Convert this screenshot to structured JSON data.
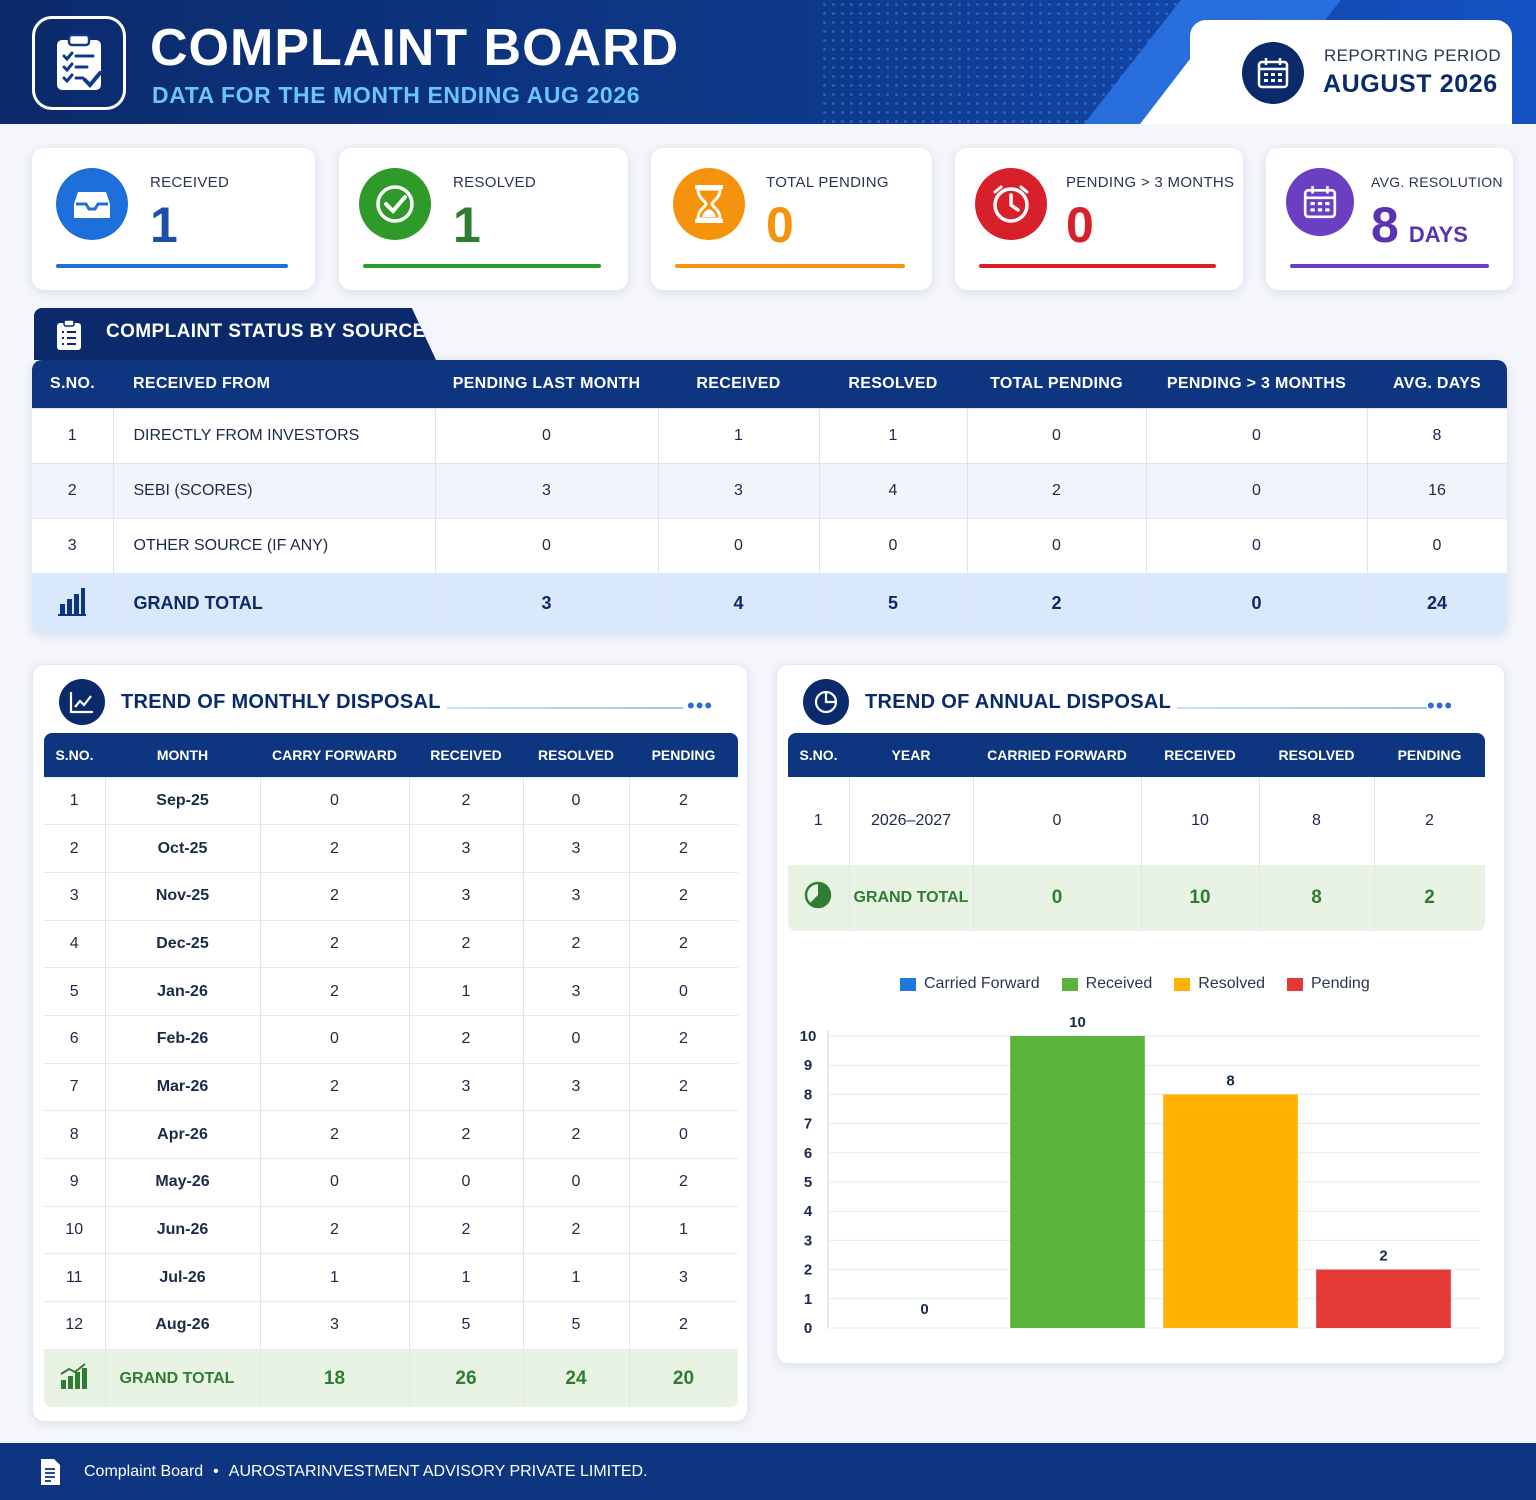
{
  "header": {
    "title": "COMPLAINT BOARD",
    "subtitle": "DATA FOR THE MONTH ENDING AUG 2026",
    "period_label": "REPORTING PERIOD",
    "period_value": "AUGUST 2026"
  },
  "kpis": [
    {
      "label": "RECEIVED",
      "value": "1",
      "color": "#1e6fd9",
      "icon": "inbox-icon"
    },
    {
      "label": "RESOLVED",
      "value": "1",
      "color": "#2e9a2a",
      "icon": "check-circle-icon"
    },
    {
      "label": "TOTAL PENDING",
      "value": "0",
      "color": "#f5930c",
      "icon": "hourglass-icon"
    },
    {
      "label": "PENDING > 3 MONTHS",
      "value": "0",
      "color": "#d8202a",
      "icon": "clock-icon"
    },
    {
      "label": "AVG. RESOLUTION",
      "value": "8",
      "unit": "DAYS",
      "color": "#6a3fc2",
      "icon": "calendar-icon"
    }
  ],
  "source_section": {
    "title": "COMPLAINT STATUS BY SOURCE",
    "headers": [
      "S.NO.",
      "RECEIVED FROM",
      "PENDING LAST MONTH",
      "RECEIVED",
      "RESOLVED",
      "TOTAL PENDING",
      "PENDING > 3 MONTHS",
      "AVG. DAYS"
    ],
    "rows": [
      [
        "1",
        "DIRECTLY FROM INVESTORS",
        "0",
        "1",
        "1",
        "0",
        "0",
        "8"
      ],
      [
        "2",
        "SEBI (SCORES)",
        "3",
        "3",
        "4",
        "2",
        "0",
        "16"
      ],
      [
        "3",
        "OTHER SOURCE (IF ANY)",
        "0",
        "0",
        "0",
        "0",
        "0",
        "0"
      ]
    ],
    "total": [
      "GRAND TOTAL",
      "3",
      "4",
      "5",
      "2",
      "0",
      "24"
    ]
  },
  "monthly": {
    "title": "TREND OF MONTHLY DISPOSAL",
    "headers": [
      "S.NO.",
      "MONTH",
      "CARRY FORWARD",
      "RECEIVED",
      "RESOLVED",
      "PENDING"
    ],
    "rows": [
      [
        "1",
        "Sep-25",
        "0",
        "2",
        "0",
        "2"
      ],
      [
        "2",
        "Oct-25",
        "2",
        "3",
        "3",
        "2"
      ],
      [
        "3",
        "Nov-25",
        "2",
        "3",
        "3",
        "2"
      ],
      [
        "4",
        "Dec-25",
        "2",
        "2",
        "2",
        "2"
      ],
      [
        "5",
        "Jan-26",
        "2",
        "1",
        "3",
        "0"
      ],
      [
        "6",
        "Feb-26",
        "0",
        "2",
        "0",
        "2"
      ],
      [
        "7",
        "Mar-26",
        "2",
        "3",
        "3",
        "2"
      ],
      [
        "8",
        "Apr-26",
        "2",
        "2",
        "2",
        "0"
      ],
      [
        "9",
        "May-26",
        "0",
        "0",
        "0",
        "2"
      ],
      [
        "10",
        "Jun-26",
        "2",
        "2",
        "2",
        "1"
      ],
      [
        "11",
        "Jul-26",
        "1",
        "1",
        "1",
        "3"
      ],
      [
        "12",
        "Aug-26",
        "3",
        "5",
        "5",
        "2"
      ]
    ],
    "total": [
      "GRAND TOTAL",
      "18",
      "26",
      "24",
      "20"
    ]
  },
  "annual": {
    "title": "TREND OF ANNUAL DISPOSAL",
    "headers": [
      "S.NO.",
      "YEAR",
      "CARRIED FORWARD",
      "RECEIVED",
      "RESOLVED",
      "PENDING"
    ],
    "rows": [
      [
        "1",
        "2026–2027",
        "0",
        "10",
        "8",
        "2"
      ]
    ],
    "total": [
      "GRAND TOTAL",
      "0",
      "10",
      "8",
      "2"
    ]
  },
  "chart_data": {
    "type": "bar",
    "categories": [
      "Carried Forward",
      "Received",
      "Resolved",
      "Pending"
    ],
    "values": [
      0,
      10,
      8,
      2
    ],
    "colors": [
      "#1f77e0",
      "#5ab33a",
      "#ffb300",
      "#e53935"
    ],
    "legend": [
      "Carried Forward",
      "Received",
      "Resolved",
      "Pending"
    ],
    "legend_position": "top",
    "ylim": [
      0,
      10
    ],
    "yticks": [
      "0",
      "1",
      "2",
      "3",
      "4",
      "5",
      "6",
      "7",
      "8",
      "9",
      "10"
    ],
    "grid": true
  },
  "footer": {
    "app": "Complaint Board",
    "sep": "•",
    "company": "AUROSTARINVESTMENT ADVISORY PRIVATE LIMITED."
  }
}
